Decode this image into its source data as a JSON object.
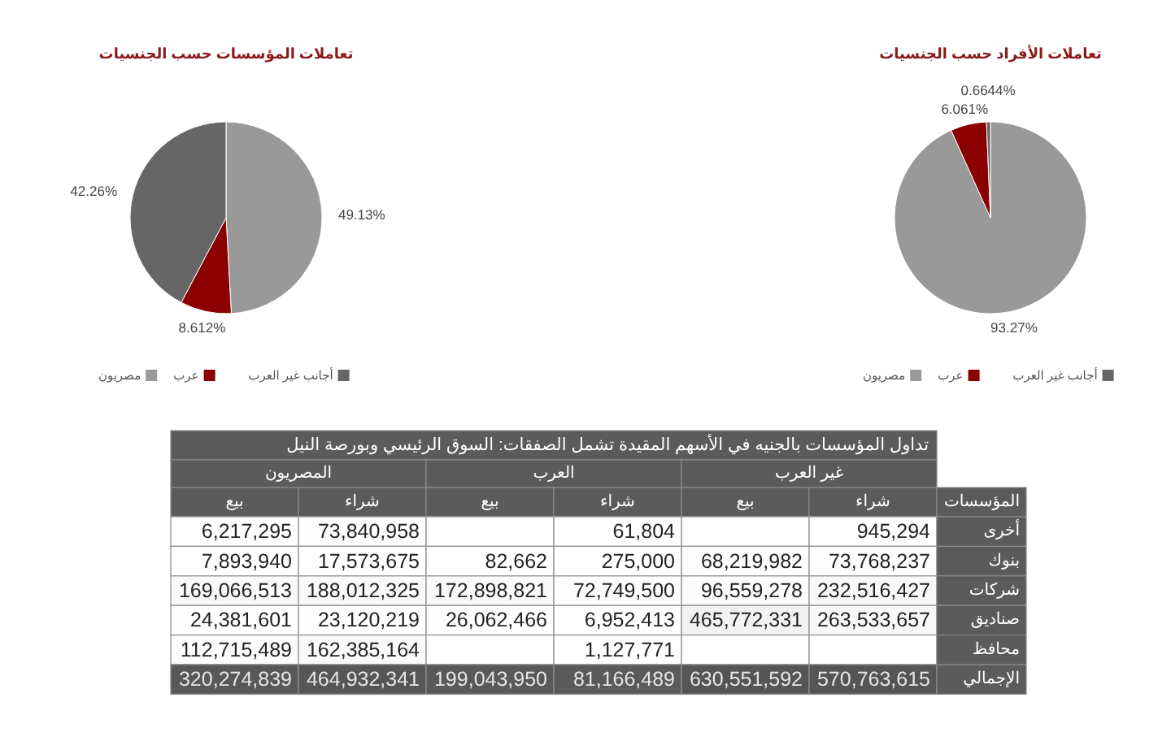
{
  "chart_data": [
    {
      "type": "pie",
      "title": "تعاملات المؤسسات حسب الجنسيات",
      "categories": [
        "مصريون",
        "عرب",
        "أجانب غير العرب"
      ],
      "values": [
        49.13,
        8.612,
        42.26
      ],
      "value_labels": [
        "49.13%",
        "8.612%",
        "42.26%"
      ],
      "colors": [
        "#999999",
        "#8b0000",
        "#666666"
      ],
      "legend": "bottom"
    },
    {
      "type": "pie",
      "title": "تعاملات الأفراد حسب الجنسيات",
      "categories": [
        "مصريون",
        "عرب",
        "أجانب غير العرب"
      ],
      "values": [
        93.27,
        6.061,
        0.6644
      ],
      "value_labels": [
        "93.27%",
        "6.061%",
        "0.6644%"
      ],
      "colors": [
        "#999999",
        "#8b0000",
        "#666666"
      ],
      "legend": "bottom"
    },
    {
      "type": "heatmap",
      "title": "تداول المؤسسات بالجنيه في الأسهم المقيدة تشمل الصفقات: السوق الرئيسي وبورصة النيل",
      "annotations": [
        "المصريون",
        "العرب",
        "غير العرب"
      ],
      "ylabel": "المؤسسات",
      "categories": [
        "بيع",
        "شراء",
        "بيع",
        "شراء",
        "بيع",
        "شراء"
      ],
      "y_categories": [
        "أخرى",
        "بنوك",
        "شركات",
        "صناديق",
        "محافظ",
        "الإجمالي"
      ],
      "cells": [
        [
          6217295,
          73840958,
          null,
          61804,
          null,
          945294
        ],
        [
          7893940,
          17573675,
          82662,
          275000,
          68219982,
          73768237
        ],
        [
          169066513,
          188012325,
          172898821,
          72749500,
          96559278,
          232516427
        ],
        [
          24381601,
          23120219,
          26062466,
          6952413,
          465772331,
          263533657
        ],
        [
          112715489,
          162385164,
          null,
          1127771,
          null,
          null
        ],
        [
          320274839,
          464932341,
          199043950,
          81166489,
          630551592,
          570763615
        ]
      ],
      "cell_labels": [
        [
          "6,217,295",
          "73,840,958",
          null,
          "61,804",
          null,
          "945,294"
        ],
        [
          "7,893,940",
          "17,573,675",
          "82,662",
          "275,000",
          "68,219,982",
          "73,768,237"
        ],
        [
          "169,066,513",
          "188,012,325",
          "172,898,821",
          "72,749,500",
          "96,559,278",
          "232,516,427"
        ],
        [
          "24,381,601",
          "23,120,219",
          "26,062,466",
          "6,952,413",
          "465,772,331",
          "263,533,657"
        ],
        [
          "112,715,489",
          "162,385,164",
          null,
          "1,127,771",
          null,
          null
        ],
        [
          "320,274,839",
          "464,932,341",
          "199,043,950",
          "81,166,489",
          "630,551,592",
          "570,763,615"
        ]
      ]
    }
  ]
}
